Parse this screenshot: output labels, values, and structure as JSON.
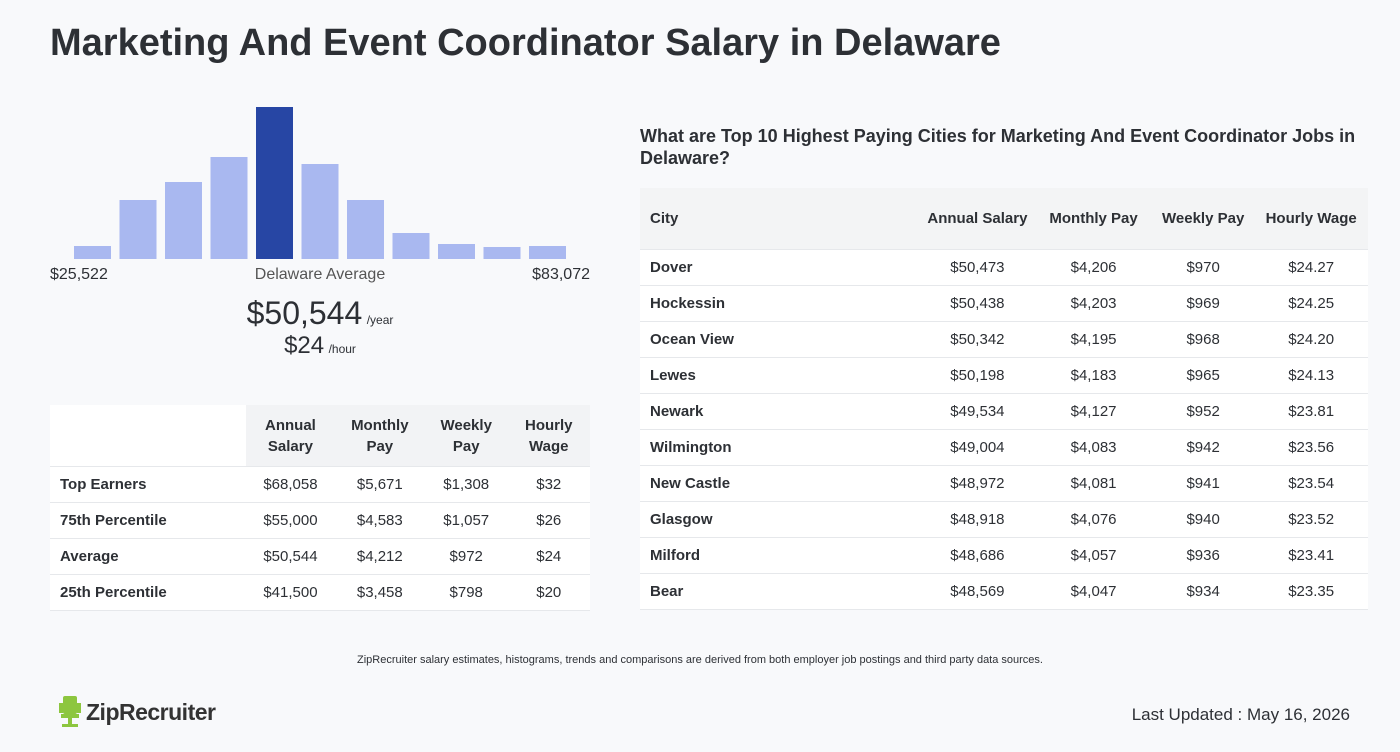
{
  "title": "Marketing And Event Coordinator Salary in Delaware",
  "chart_data": {
    "type": "bar",
    "values": [
      13,
      59,
      77,
      102,
      152,
      95,
      59,
      26,
      15,
      12,
      13
    ],
    "colors": [
      "#a9b8f0",
      "#a9b8f0",
      "#a9b8f0",
      "#a9b8f0",
      "#2746a4",
      "#a9b8f0",
      "#a9b8f0",
      "#a9b8f0",
      "#a9b8f0",
      "#a9b8f0",
      "#a9b8f0"
    ],
    "min_label": "$25,522",
    "center_label": "Delaware Average",
    "max_label": "$83,072"
  },
  "average": {
    "annual": "$50,544",
    "annual_unit": "/year",
    "hourly": "$24",
    "hourly_unit": "/hour"
  },
  "summary_table": {
    "headers": [
      "Annual Salary",
      "Monthly Pay",
      "Weekly Pay",
      "Hourly Wage"
    ],
    "rows": [
      [
        "Top Earners",
        "$68,058",
        "$5,671",
        "$1,308",
        "$32"
      ],
      [
        "75th Percentile",
        "$55,000",
        "$4,583",
        "$1,057",
        "$26"
      ],
      [
        "Average",
        "$50,544",
        "$4,212",
        "$972",
        "$24"
      ],
      [
        "25th Percentile",
        "$41,500",
        "$3,458",
        "$798",
        "$20"
      ]
    ]
  },
  "cities_table": {
    "title": "What are Top 10 Highest Paying Cities for Marketing And Event Coordinator Jobs in Delaware?",
    "headers": [
      "City",
      "Annual Salary",
      "Monthly Pay",
      "Weekly Pay",
      "Hourly Wage"
    ],
    "rows": [
      [
        "Dover",
        "$50,473",
        "$4,206",
        "$970",
        "$24.27"
      ],
      [
        "Hockessin",
        "$50,438",
        "$4,203",
        "$969",
        "$24.25"
      ],
      [
        "Ocean View",
        "$50,342",
        "$4,195",
        "$968",
        "$24.20"
      ],
      [
        "Lewes",
        "$50,198",
        "$4,183",
        "$965",
        "$24.13"
      ],
      [
        "Newark",
        "$49,534",
        "$4,127",
        "$952",
        "$23.81"
      ],
      [
        "Wilmington",
        "$49,004",
        "$4,083",
        "$942",
        "$23.56"
      ],
      [
        "New Castle",
        "$48,972",
        "$4,081",
        "$941",
        "$23.54"
      ],
      [
        "Glasgow",
        "$48,918",
        "$4,076",
        "$940",
        "$23.52"
      ],
      [
        "Milford",
        "$48,686",
        "$4,057",
        "$936",
        "$23.41"
      ],
      [
        "Bear",
        "$48,569",
        "$4,047",
        "$934",
        "$23.35"
      ]
    ]
  },
  "footnote": "ZipRecruiter salary estimates, histograms, trends and comparisons are derived from both employer job postings and third party data sources.",
  "logo": "ZipRecruiter",
  "last_updated": "Last Updated : May 16, 2026"
}
